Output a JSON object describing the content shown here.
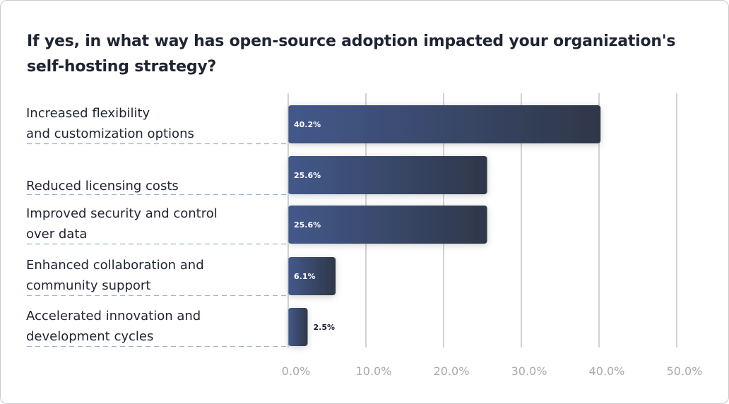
{
  "chart_data": {
    "type": "bar",
    "orientation": "horizontal",
    "title": "If yes, in what way has open-source adoption impacted your organization's self-hosting strategy?",
    "categories": [
      [
        "Increased flexibility",
        "and customization options"
      ],
      [
        "Reduced licensing costs"
      ],
      [
        "Improved security and control",
        "over data"
      ],
      [
        "Enhanced collaboration and",
        "community support"
      ],
      [
        "Accelerated innovation and",
        "development cycles"
      ]
    ],
    "values": [
      40.2,
      25.6,
      25.6,
      6.1,
      2.5
    ],
    "value_labels": [
      "40.2%",
      "25.6%",
      "25.6%",
      "6.1%",
      "2.5%"
    ],
    "xlim": [
      0,
      50
    ],
    "xticks": [
      "0.0%",
      "10.0%",
      "20.0%",
      "30.0%",
      "40.0%",
      "50.0%"
    ],
    "grid": "vertical",
    "colors": {
      "bar_start": "#43598a",
      "bar_end": "#2f3749",
      "dash": "#9fb2d8",
      "grid": "#a6a6ae"
    }
  }
}
